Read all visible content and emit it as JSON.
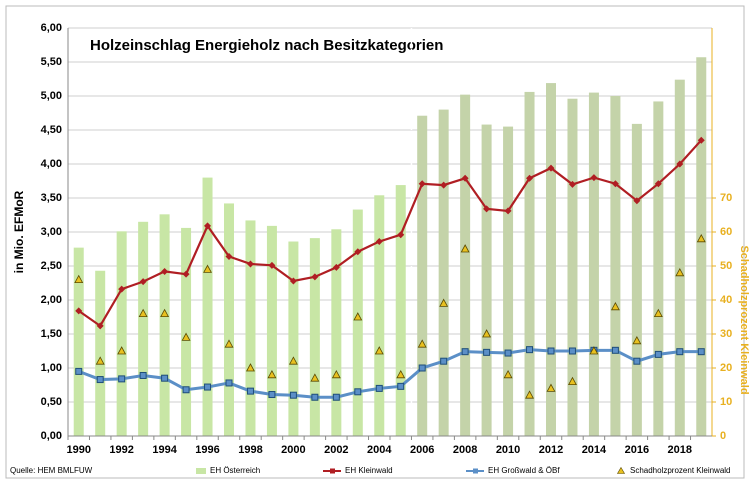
{
  "chart_data": {
    "type": "bar",
    "title": "Holzeinschlag Energieholz nach Besitzkategorien",
    "source": "Quelle: HEM BMLFUW",
    "ylabel": "in Mio. EFMoR",
    "y2label": "Schadholzprozent Kleinwald",
    "categories": [
      "1990",
      null,
      "1992",
      null,
      "1994",
      null,
      "1996",
      null,
      "1998",
      null,
      "2000",
      null,
      "2002",
      null,
      "2004",
      null,
      "2006",
      null,
      "2008",
      null,
      "2010",
      null,
      "2012",
      null,
      "2014",
      null,
      "2016",
      null,
      "2018",
      null
    ],
    "ylim": [
      0,
      6
    ],
    "yticks": [
      {
        "value": 0,
        "label": "0,00"
      },
      {
        "value": 0.5,
        "label": "0,50"
      },
      {
        "value": 1,
        "label": "1,00"
      },
      {
        "value": 1.5,
        "label": "1,50"
      },
      {
        "value": 2,
        "label": "2,00"
      },
      {
        "value": 2.5,
        "label": "2,50"
      },
      {
        "value": 3,
        "label": "3,00"
      },
      {
        "value": 3.5,
        "label": "3,50"
      },
      {
        "value": 4,
        "label": "4,00"
      },
      {
        "value": 4.5,
        "label": "4,50"
      },
      {
        "value": 5,
        "label": "5,00"
      },
      {
        "value": 5.5,
        "label": "5,50"
      },
      {
        "value": 6,
        "label": "6,00"
      }
    ],
    "y2lim": [
      0,
      120
    ],
    "y2ticks": [
      0,
      10,
      20,
      30,
      40,
      50,
      60,
      70
    ],
    "grid": true,
    "legend": "bottom",
    "series": [
      {
        "name": "EH Österreich",
        "type": "bar",
        "color": "#c8e6a5",
        "colors": [
          "#c8e6a5",
          "#c8e6a5",
          "#c8e6a5",
          "#c8e6a5",
          "#c8e6a5",
          "#c8e6a5",
          "#c8e6a5",
          "#c8e6a5",
          "#c8e6a5",
          "#c8e6a5",
          "#c8e6a5",
          "#c8e6a5",
          "#c8e6a5",
          "#c8e6a5",
          "#c8e6a5",
          "#c8e6a5",
          "#c4d3a9",
          "#c4d3a9",
          "#c4d3a9",
          "#c4d3a9",
          "#c4d3a9",
          "#c4d3a9",
          "#c4d3a9",
          "#c4d3a9",
          "#c4d3a9",
          "#c4d3a9",
          "#c4d3a9",
          "#c4d3a9",
          "#c4d3a9",
          "#c4d3a9"
        ],
        "values": [
          2.77,
          2.43,
          3.01,
          3.15,
          3.26,
          3.06,
          3.8,
          3.42,
          3.17,
          3.09,
          2.86,
          2.91,
          3.04,
          3.33,
          3.54,
          3.69,
          4.71,
          4.8,
          5.02,
          4.58,
          4.55,
          5.06,
          5.19,
          4.96,
          5.05,
          5.0,
          4.59,
          4.92,
          5.24,
          5.57
        ]
      },
      {
        "name": "EH Kleinwald",
        "type": "line",
        "color": "#b01e23",
        "marker": "diamond",
        "values": [
          1.84,
          1.62,
          2.16,
          2.27,
          2.42,
          2.38,
          3.09,
          2.64,
          2.53,
          2.51,
          2.28,
          2.34,
          2.48,
          2.71,
          2.86,
          2.96,
          3.71,
          3.69,
          3.79,
          3.34,
          3.31,
          3.79,
          3.94,
          3.7,
          3.8,
          3.71,
          3.46,
          3.71,
          4.0,
          4.35
        ]
      },
      {
        "name": "EH Großwald & ÖBf",
        "type": "line",
        "color": "#5b8fc7",
        "marker": "square",
        "values": [
          0.95,
          0.83,
          0.84,
          0.89,
          0.85,
          0.68,
          0.72,
          0.78,
          0.66,
          0.61,
          0.6,
          0.57,
          0.57,
          0.65,
          0.7,
          0.73,
          1.0,
          1.1,
          1.24,
          1.23,
          1.22,
          1.27,
          1.25,
          1.25,
          1.26,
          1.26,
          1.1,
          1.2,
          1.24,
          1.24
        ]
      },
      {
        "name": "Schadholzprozent Kleinwald",
        "type": "scatter",
        "axis": "y2",
        "color": "#e8c020",
        "marker": "triangle",
        "values": [
          46,
          22,
          25,
          36,
          36,
          29,
          49,
          27,
          20,
          18,
          22,
          17,
          18,
          35,
          25,
          18,
          27,
          39,
          55,
          30,
          18,
          12,
          14,
          16,
          25,
          38,
          28,
          36,
          48,
          58
        ]
      }
    ]
  }
}
